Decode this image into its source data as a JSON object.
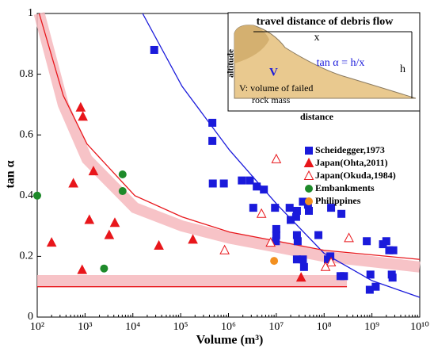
{
  "chart_data": {
    "type": "scatter",
    "xlabel": "Volume (m³)",
    "ylabel": "tan α",
    "xscale": "log",
    "xlim": [
      100,
      10000000000
    ],
    "ylim": [
      0,
      1
    ],
    "xticks": [
      {
        "value": 100,
        "label": "10²"
      },
      {
        "value": 1000,
        "label": "10³"
      },
      {
        "value": 10000,
        "label": "10⁴"
      },
      {
        "value": 100000,
        "label": "10⁵"
      },
      {
        "value": 1000000,
        "label": "10⁶"
      },
      {
        "value": 10000000,
        "label": "10⁷"
      },
      {
        "value": 100000000,
        "label": "10⁸"
      },
      {
        "value": 1000000000,
        "label": "10⁹"
      },
      {
        "value": 10000000000,
        "label": "10¹⁰"
      }
    ],
    "yticks": [
      0,
      0.2,
      0.4,
      0.6,
      0.8,
      1
    ],
    "series": [
      {
        "name": "Scheidegger,1973",
        "color": "#1a1adb",
        "marker": "square",
        "x": [
          28000,
          460000,
          460000,
          470000,
          800000,
          1900000,
          2800000,
          3900000,
          5500000,
          3300000,
          9400000,
          10000000,
          10000000,
          9800000,
          19000000,
          20000000,
          26000000,
          27000000,
          36000000,
          46000000,
          27000000,
          28000000,
          27000000,
          36000000,
          38000000,
          76000000,
          48000000,
          140000000,
          135000000,
          120000000,
          230000000,
          220000000,
          260000000,
          2000000000,
          2600000000,
          2700000000,
          1700000000,
          2300000000,
          2800000000,
          780000000,
          930000000,
          900000000,
          1200000000
        ],
        "values": [
          0.88,
          0.64,
          0.58,
          0.44,
          0.44,
          0.45,
          0.45,
          0.43,
          0.42,
          0.36,
          0.36,
          0.29,
          0.27,
          0.25,
          0.36,
          0.32,
          0.33,
          0.35,
          0.38,
          0.37,
          0.27,
          0.25,
          0.19,
          0.19,
          0.165,
          0.27,
          0.35,
          0.36,
          0.2,
          0.19,
          0.34,
          0.135,
          0.135,
          0.25,
          0.14,
          0.13,
          0.24,
          0.22,
          0.22,
          0.25,
          0.14,
          0.09,
          0.1
        ]
      },
      {
        "name": "Japan(Ohta,2011)",
        "color": "#e8161b",
        "marker": "triangle",
        "x": [
          810,
          900,
          570,
          1500,
          1230,
          200,
          870,
          3200,
          4200,
          35000,
          180000,
          33000000
        ],
        "values": [
          0.69,
          0.66,
          0.44,
          0.48,
          0.32,
          0.245,
          0.155,
          0.27,
          0.31,
          0.235,
          0.255,
          0.13
        ]
      },
      {
        "name": "Japan(Okuda,1984)",
        "color": "#e8161b",
        "marker": "open-triangle",
        "x": [
          10000000,
          4900000,
          830000,
          7600000,
          140000000,
          107000000,
          330000000
        ],
        "values": [
          0.52,
          0.34,
          0.22,
          0.245,
          0.18,
          0.165,
          0.26
        ]
      },
      {
        "name": "Embankments",
        "color": "#1e8a2a",
        "marker": "circle",
        "x": [
          100,
          6100,
          6100,
          2500
        ],
        "values": [
          0.4,
          0.47,
          0.415,
          0.16
        ]
      },
      {
        "name": "Philippines",
        "color": "#f39020",
        "marker": "circle",
        "x": [
          9000000
        ],
        "values": [
          0.185
        ]
      }
    ],
    "lines": [
      {
        "color": "#1a1adb",
        "x": [
          16000,
          107000,
          1050000,
          10500000,
          100000000,
          1000000000,
          10000000000
        ],
        "values": [
          1,
          0.76,
          0.55,
          0.37,
          0.21,
          0.12,
          0.065
        ]
      },
      {
        "color": "#e8161b",
        "x": [
          110,
          350,
          1100,
          11000,
          107000,
          1050000,
          10500000,
          100000000,
          10000000000
        ],
        "values": [
          1,
          0.73,
          0.57,
          0.4,
          0.33,
          0.28,
          0.25,
          0.22,
          0.19
        ]
      },
      {
        "color": "#e8161b",
        "x": [
          100,
          300000000
        ],
        "values": [
          0.1,
          0.1
        ]
      }
    ],
    "bands": [
      {
        "color": "#f6b9bd",
        "x": [
          110,
          350,
          1100,
          11000,
          107000,
          1050000,
          10500000,
          100000000,
          10000000000
        ],
        "values": [
          1,
          0.7,
          0.52,
          0.36,
          0.3,
          0.26,
          0.23,
          0.2,
          0.165
        ]
      },
      {
        "color": "#f6b9bd",
        "x": [
          100,
          300000000
        ],
        "values": [
          0.12,
          0.12
        ]
      }
    ],
    "legend": "upper right",
    "inset": {
      "title": "travel distance of debris flow",
      "x_label": "x",
      "altitude": "altitude",
      "formula": "tan α = h/x",
      "h_label": "h",
      "v_label": "V",
      "v_note": "V: volume of failed",
      "v_note2": "rock mass",
      "distance": "distance"
    }
  }
}
